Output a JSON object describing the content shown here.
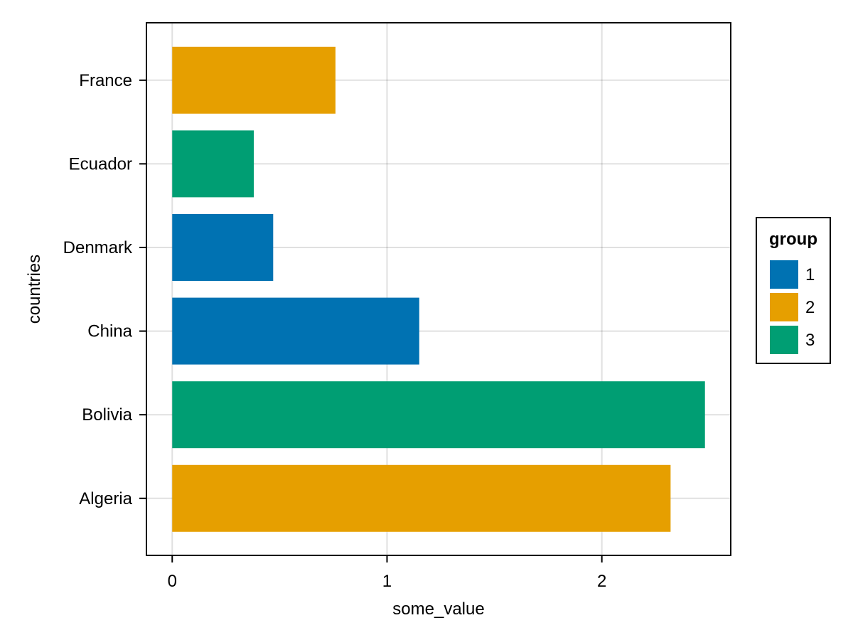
{
  "chart_data": {
    "type": "bar",
    "orientation": "horizontal",
    "title": "",
    "xlabel": "some_value",
    "ylabel": "countries",
    "xlim": [
      -0.12,
      2.6
    ],
    "xticks": [
      "0",
      "1",
      "2"
    ],
    "categories": [
      "Algeria",
      "Bolivia",
      "China",
      "Denmark",
      "Ecuador",
      "France"
    ],
    "values": [
      2.32,
      2.48,
      1.15,
      0.47,
      0.38,
      0.76
    ],
    "groups": [
      "2",
      "3",
      "1",
      "1",
      "3",
      "2"
    ],
    "grid": true,
    "legend": {
      "title": "group",
      "position": "right",
      "entries": [
        {
          "label": "1",
          "color": "#0072b2"
        },
        {
          "label": "2",
          "color": "#e69f00"
        },
        {
          "label": "3",
          "color": "#009e73"
        }
      ]
    }
  }
}
